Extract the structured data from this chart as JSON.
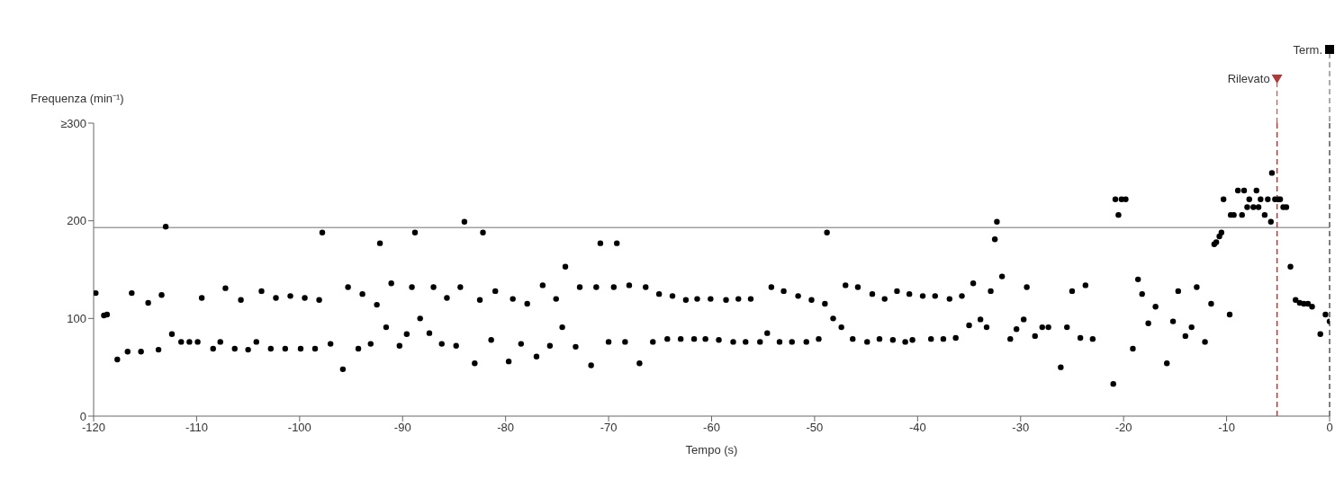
{
  "chart_data": {
    "type": "scatter",
    "xlabel": "Tempo (s)",
    "ylabel": "Frequenza (min⁻¹)",
    "xlim": [
      -120,
      0
    ],
    "xticks": [
      -120,
      -110,
      -100,
      -90,
      -80,
      -70,
      -60,
      -50,
      -40,
      -30,
      -20,
      -10,
      0
    ],
    "ylim": [
      0,
      300
    ],
    "yticks": [
      0,
      100,
      200,
      {
        "value": 300,
        "label": "≥300"
      }
    ],
    "grid": false,
    "marker": "circle",
    "series": [
      {
        "color": "#000000",
        "x": [
          -119.8,
          -119,
          -118.7,
          -117.7,
          -116.7,
          -116.3,
          -115.4,
          -114.7,
          -113.7,
          -113.4,
          -113,
          -112.4,
          -111.5,
          -110.7,
          -109.9,
          -109.5,
          -108.4,
          -107.7,
          -107.2,
          -106.3,
          -105.7,
          -105,
          -104.2,
          -103.7,
          -102.8,
          -102.3,
          -101.4,
          -100.9,
          -99.9,
          -99.5,
          -98.5,
          -98.1,
          -97.8,
          -97,
          -95.8,
          -95.3,
          -94.3,
          -93.9,
          -93.1,
          -92.5,
          -92.2,
          -91.6,
          -91.1,
          -90.3,
          -89.6,
          -89.1,
          -88.8,
          -88.3,
          -87.4,
          -87,
          -86.2,
          -85.7,
          -84.8,
          -84.4,
          -84,
          -83,
          -82.5,
          -82.2,
          -81.4,
          -81,
          -79.7,
          -79.3,
          -78.5,
          -77.9,
          -77,
          -76.4,
          -75.7,
          -75.1,
          -74.5,
          -74.2,
          -73.2,
          -72.8,
          -71.7,
          -71.2,
          -70.8,
          -70,
          -69.5,
          -69.2,
          -68.4,
          -68,
          -67,
          -66.4,
          -65.7,
          -65.1,
          -64.3,
          -63.8,
          -63,
          -62.5,
          -61.7,
          -61.4,
          -60.6,
          -60.1,
          -59.3,
          -58.6,
          -57.9,
          -57.4,
          -56.7,
          -56.2,
          -55.3,
          -54.6,
          -54.2,
          -53.4,
          -53,
          -52.2,
          -51.6,
          -50.8,
          -50.3,
          -49.6,
          -49,
          -48.8,
          -48.2,
          -47.4,
          -47,
          -46.3,
          -45.8,
          -44.9,
          -44.4,
          -43.7,
          -43.2,
          -42.4,
          -42,
          -41.2,
          -40.8,
          -40.5,
          -39.5,
          -38.7,
          -38.3,
          -37.5,
          -36.9,
          -36.3,
          -35.7,
          -35,
          -34.6,
          -33.9,
          -33.3,
          -32.9,
          -32.5,
          -32.3,
          -31.8,
          -31,
          -30.4,
          -29.7,
          -29.4,
          -28.6,
          -27.9,
          -27.3,
          -26.1,
          -25.5,
          -25,
          -24.2,
          -23.7,
          -23,
          -21,
          -20.8,
          -20.5,
          -20.2,
          -19.8,
          -19.1,
          -18.6,
          -18.2,
          -17.6,
          -16.9,
          -15.8,
          -15.2,
          -14.7,
          -14,
          -13.4,
          -12.9,
          -12.1,
          -11.5,
          -11.2,
          -11,
          -10.7,
          -10.5,
          -10.3,
          -9.7,
          -9.6,
          -9.3,
          -8.9,
          -8.5,
          -8.3,
          -8,
          -7.8,
          -7.4,
          -7.1,
          -6.9,
          -6.7,
          -6.3,
          -6,
          -5.7,
          -5.6,
          -5.3,
          -5,
          -4.8,
          -4.5,
          -4.2,
          -3.8,
          -3.3,
          -2.9,
          -2.5,
          -2.1,
          -1.7,
          -0.9,
          -0.4,
          0
        ],
        "values": [
          126,
          103,
          104,
          58,
          66,
          126,
          66,
          116,
          68,
          124,
          194,
          84,
          76,
          76,
          76,
          121,
          69,
          76,
          131,
          69,
          119,
          68,
          76,
          128,
          69,
          121,
          69,
          123,
          69,
          121,
          69,
          119,
          188,
          74,
          48,
          132,
          69,
          125,
          74,
          114,
          177,
          91,
          136,
          72,
          84,
          132,
          188,
          100,
          85,
          132,
          74,
          121,
          72,
          132,
          199,
          54,
          119,
          188,
          78,
          128,
          56,
          120,
          74,
          115,
          61,
          134,
          72,
          120,
          91,
          153,
          71,
          132,
          52,
          132,
          177,
          76,
          132,
          177,
          76,
          134,
          54,
          132,
          76,
          125,
          79,
          123,
          79,
          119,
          79,
          120,
          79,
          120,
          78,
          119,
          76,
          120,
          76,
          120,
          76,
          85,
          132,
          76,
          128,
          76,
          123,
          76,
          119,
          79,
          115,
          188,
          100,
          91,
          134,
          79,
          132,
          76,
          125,
          79,
          120,
          78,
          128,
          76,
          125,
          78,
          123,
          79,
          123,
          79,
          120,
          80,
          123,
          93,
          136,
          99,
          91,
          128,
          181,
          199,
          143,
          79,
          89,
          99,
          132,
          82,
          91,
          91,
          50,
          91,
          128,
          80,
          134,
          79,
          33,
          222,
          206,
          222,
          222,
          69,
          140,
          125,
          95,
          112,
          54,
          97,
          128,
          82,
          91,
          132,
          76,
          115,
          176,
          178,
          184,
          188,
          222,
          104,
          206,
          206,
          231,
          206,
          231,
          214,
          222,
          214,
          231,
          214,
          222,
          206,
          222,
          199,
          249,
          222,
          222,
          222,
          214,
          214,
          153,
          119,
          116,
          115,
          115,
          112,
          84,
          104,
          97
        ]
      }
    ],
    "ref_lines": [
      {
        "axis": "y",
        "value": 193,
        "color": "#a0a0a0",
        "line_style": "solid"
      },
      {
        "axis": "x",
        "value": -5.1,
        "label": "Rilevato",
        "color": "#b03a3a",
        "line_style": "dashed"
      },
      {
        "axis": "x",
        "value": 0,
        "label": "Term.",
        "color": "#555555",
        "line_style": "dashed"
      }
    ]
  }
}
